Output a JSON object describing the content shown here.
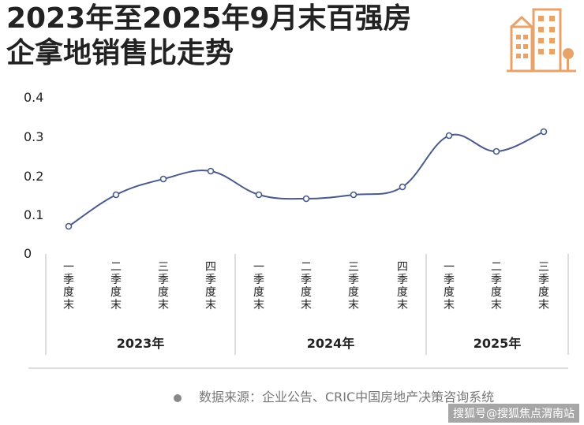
{
  "title_line1": "2023年至2025年9月末百强房",
  "title_line2": "企拿地销售比走势",
  "source_text": "数据来源：企业公告、CRIC中国房地产决策咨询系统",
  "watermark_text": "搜狐号@搜狐焦点渭南站",
  "colors": {
    "line": "#4a5a8c",
    "marker_fill": "#ffffff",
    "axis": "#bbbbbb",
    "logo": "#e8a36a"
  },
  "chart_data": {
    "type": "line",
    "categories": [
      "一季度末",
      "二季度末",
      "三季度末",
      "四季度末",
      "一季度末",
      "二季度末",
      "三季度末",
      "四季度末",
      "一季度末",
      "二季度末",
      "三季度末"
    ],
    "groups": [
      {
        "label": "2023年",
        "count": 4
      },
      {
        "label": "2024年",
        "count": 4
      },
      {
        "label": "2025年",
        "count": 3
      }
    ],
    "values": [
      0.07,
      0.15,
      0.19,
      0.21,
      0.15,
      0.14,
      0.15,
      0.17,
      0.3,
      0.26,
      0.31
    ],
    "yticks": [
      "0.4",
      "0.3",
      "0.2",
      "0.1",
      "0"
    ],
    "ylim": [
      0,
      0.4
    ],
    "grid": false,
    "smooth": true
  }
}
